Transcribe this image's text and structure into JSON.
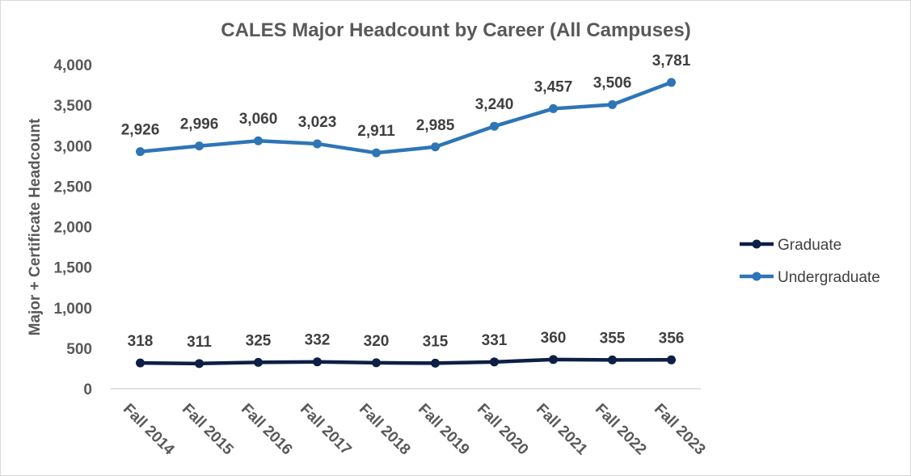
{
  "chart_data": {
    "type": "line",
    "title": "CALES Major Headcount by Career (All Campuses)",
    "xlabel": "",
    "ylabel": "Major + Certificate Headcount",
    "categories": [
      "Fall 2014",
      "Fall 2015",
      "Fall 2016",
      "Fall 2017",
      "Fall 2018",
      "Fall 2019",
      "Fall 2020",
      "Fall 2021",
      "Fall 2022",
      "Fall 2023"
    ],
    "ylim": [
      0,
      4000
    ],
    "yticks": [
      0,
      500,
      1000,
      1500,
      2000,
      2500,
      3000,
      3500,
      4000
    ],
    "ytick_labels": [
      "0",
      "500",
      "1,000",
      "1,500",
      "2,000",
      "2,500",
      "3,000",
      "3,500",
      "4,000"
    ],
    "grid": false,
    "legend_position": "right",
    "series": [
      {
        "name": "Graduate",
        "color": "#0d1f45",
        "values": [
          318,
          311,
          325,
          332,
          320,
          315,
          331,
          360,
          355,
          356
        ],
        "labels": [
          "318",
          "311",
          "325",
          "332",
          "320",
          "315",
          "331",
          "360",
          "355",
          "356"
        ]
      },
      {
        "name": "Undergraduate",
        "color": "#2e75b6",
        "values": [
          2926,
          2996,
          3060,
          3023,
          2911,
          2985,
          3240,
          3457,
          3506,
          3781
        ],
        "labels": [
          "2,926",
          "2,996",
          "3,060",
          "3,023",
          "2,911",
          "2,985",
          "3,240",
          "3,457",
          "3,506",
          "3,781"
        ]
      }
    ]
  }
}
